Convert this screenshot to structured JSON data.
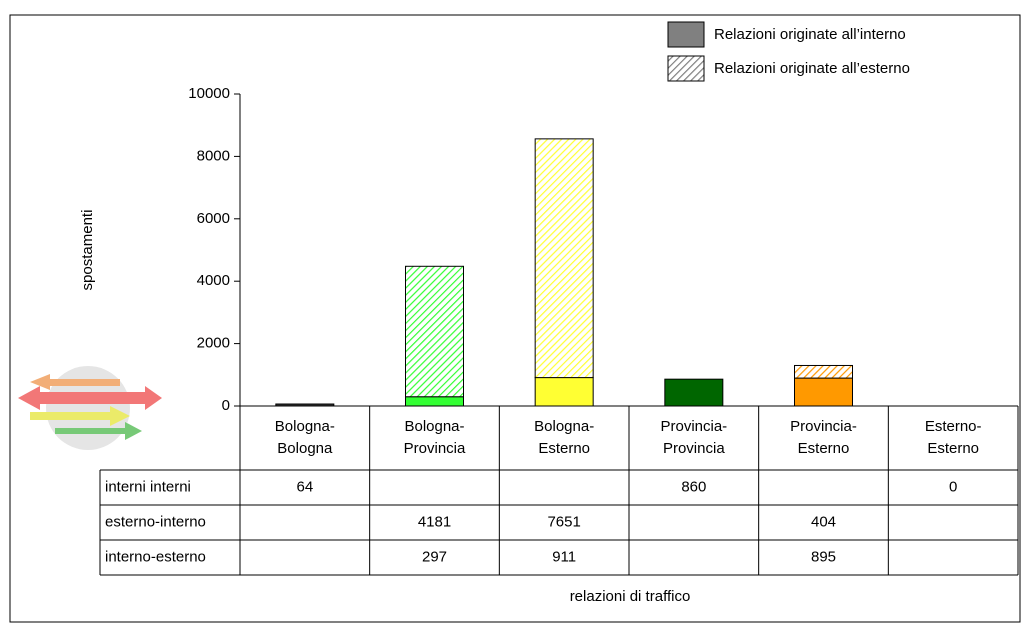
{
  "chart_data": {
    "type": "stacked-bar-with-table",
    "y_axis_label": "spostamenti",
    "x_axis_label": "relazioni di traffico",
    "categories": [
      [
        "Bologna-",
        "Bologna"
      ],
      [
        "Bologna-",
        "Provincia"
      ],
      [
        "Bologna-",
        "Esterno"
      ],
      [
        "Provincia-",
        "Provincia"
      ],
      [
        "Provincia-",
        "Esterno"
      ],
      [
        "Esterno-",
        "Esterno"
      ]
    ],
    "category_colors": [
      "#333333",
      "#33ff33",
      "#ffff33",
      "#006600",
      "#ff9900",
      "#999999"
    ],
    "series": [
      {
        "name": "interni interni",
        "style": "solid",
        "values": [
          64,
          null,
          null,
          860,
          null,
          0
        ]
      },
      {
        "name": "esterno-interno",
        "style": "hatched",
        "values": [
          null,
          4181,
          7651,
          null,
          404,
          null
        ]
      },
      {
        "name": "interno-esterno",
        "style": "solid",
        "values": [
          null,
          297,
          911,
          null,
          895,
          null
        ]
      }
    ],
    "legend": [
      {
        "label": "Relazioni originate all’interno",
        "style": "solid",
        "color": "#808080"
      },
      {
        "label": "Relazioni originate all’esterno",
        "style": "hatched",
        "color": "#808080"
      }
    ],
    "ylim": [
      0,
      10000
    ],
    "yticks": [
      0,
      2000,
      4000,
      6000,
      8000,
      10000
    ]
  }
}
